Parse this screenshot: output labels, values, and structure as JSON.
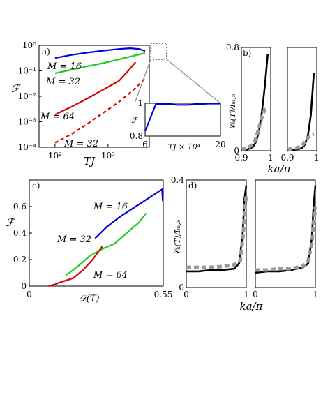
{
  "chart_data": [
    {
      "panel": "a",
      "panel_label": "a)",
      "type": "line",
      "xscale": "log",
      "yscale": "log",
      "xlim": [
        50,
        6000
      ],
      "ylim": [
        0.0001,
        1
      ],
      "xlabel": "TJ",
      "ylabel": "ℱ",
      "xticks": [
        {
          "v": 100,
          "label": "10²"
        },
        {
          "v": 1000,
          "label": "10³"
        }
      ],
      "yticks": [
        {
          "v": 1,
          "label": "10⁰"
        },
        {
          "v": 0.1,
          "label": "10⁻¹"
        },
        {
          "v": 0.01,
          "label": "10⁻²"
        },
        {
          "v": 0.001,
          "label": "10⁻³"
        },
        {
          "v": 0.0001,
          "label": "10⁻⁴"
        }
      ],
      "series": [
        {
          "label": "M = 16",
          "color": "#0000dd",
          "dash": false,
          "x": [
            100,
            200,
            400,
            800,
            1600,
            2600,
            3900,
            5000
          ],
          "y": [
            0.32,
            0.42,
            0.52,
            0.62,
            0.72,
            0.77,
            0.72,
            0.6
          ]
        },
        {
          "label": "M = 32",
          "color": "#22cc22",
          "dash": false,
          "x": [
            100,
            200,
            400,
            800,
            1600,
            3200,
            5000
          ],
          "y": [
            0.08,
            0.11,
            0.15,
            0.2,
            0.28,
            0.4,
            0.5
          ]
        },
        {
          "label": "M = 64",
          "color": "#dd0000",
          "dash": false,
          "x": [
            100,
            200,
            400,
            800,
            1600,
            2400,
            3300
          ],
          "y": [
            0.0019,
            0.0038,
            0.008,
            0.018,
            0.04,
            0.1,
            0.22
          ]
        },
        {
          "label": "M = 32",
          "color": "#dd0000",
          "dash": true,
          "x": [
            100,
            200,
            400,
            800,
            1600,
            3200,
            5000
          ],
          "y": [
            0.00015,
            0.00032,
            0.0008,
            0.0022,
            0.006,
            0.02,
            0.05
          ]
        }
      ],
      "inset": {
        "type": "line",
        "xlim": [
          6,
          20
        ],
        "ylim": [
          0.8,
          1
        ],
        "xlabel": "TJ × 10⁴",
        "ylabel": "ℱ",
        "xticks": [
          {
            "v": 6,
            "label": "6"
          },
          {
            "v": 20,
            "label": "20"
          }
        ],
        "yticks": [
          {
            "v": 0.8,
            "label": "0.8"
          },
          {
            "v": 1,
            "label": "1"
          }
        ],
        "series": [
          {
            "color": "#0000dd",
            "x": [
              6,
              8,
              10,
              12,
              14,
              16,
              18,
              20
            ],
            "y": [
              0.83,
              0.995,
              0.995,
              0.99,
              0.99,
              0.995,
              0.998,
              0.998
            ]
          }
        ]
      }
    },
    {
      "panel": "b",
      "panel_label": "b)",
      "type": "line",
      "xlim": [
        0.9,
        1
      ],
      "ylim": [
        0,
        0.8
      ],
      "xlabel": "ka/π",
      "ylabel": "𝒞ₖ(T)/Iₘ,ₙ",
      "yticks": [
        {
          "v": 0,
          "label": "0"
        },
        {
          "v": 0.8,
          "label": "0.8"
        }
      ],
      "subpanels": [
        {
          "xticks": [
            {
              "v": 0.9,
              "label": "0.9"
            },
            {
              "v": 1,
              "label": "1"
            }
          ],
          "series": [
            {
              "style": "solid-black",
              "x": [
                0.9,
                0.92,
                0.94,
                0.95,
                0.96,
                0.97,
                0.98,
                0.99
              ],
              "y": [
                0.0,
                0.01,
                0.03,
                0.07,
                0.15,
                0.3,
                0.5,
                0.75
              ]
            },
            {
              "style": "dashed-gray",
              "x": [
                0.9,
                0.92,
                0.94,
                0.95,
                0.96,
                0.97,
                0.98,
                0.99
              ],
              "y": [
                0.01,
                0.02,
                0.05,
                0.1,
                0.18,
                0.26,
                0.32,
                0.34
              ]
            }
          ]
        },
        {
          "xticks": [
            {
              "v": 0.9,
              "label": "0.9"
            },
            {
              "v": 1,
              "label": "1"
            }
          ],
          "series": [
            {
              "style": "solid-black",
              "x": [
                0.9,
                0.93,
                0.95,
                0.96,
                0.97,
                0.98,
                0.99
              ],
              "y": [
                0.0,
                0.01,
                0.02,
                0.05,
                0.12,
                0.28,
                0.6
              ]
            },
            {
              "style": "dashed-gray",
              "x": [
                0.9,
                0.93,
                0.95,
                0.96,
                0.97,
                0.98,
                0.99
              ],
              "y": [
                0.01,
                0.02,
                0.04,
                0.07,
                0.1,
                0.12,
                0.13
              ]
            }
          ]
        }
      ]
    },
    {
      "panel": "c",
      "panel_label": "c)",
      "type": "line",
      "xlim": [
        0,
        0.55
      ],
      "ylim": [
        0,
        0.8
      ],
      "xlabel": "𝒟(T)",
      "ylabel": "ℱ",
      "xticks": [
        {
          "v": 0,
          "label": "0"
        },
        {
          "v": 0.55,
          "label": "0.55"
        }
      ],
      "yticks": [
        {
          "v": 0,
          "label": "0"
        },
        {
          "v": 0.2,
          "label": "0.2"
        },
        {
          "v": 0.4,
          "label": "0.4"
        },
        {
          "v": 0.6,
          "label": "0.6"
        }
      ],
      "series": [
        {
          "label": "M = 16",
          "color": "#0000dd",
          "x": [
            0.27,
            0.32,
            0.37,
            0.42,
            0.47,
            0.52,
            0.545,
            0.548
          ],
          "y": [
            0.36,
            0.45,
            0.52,
            0.58,
            0.64,
            0.7,
            0.73,
            0.64
          ]
        },
        {
          "label": "M = 32",
          "color": "#22cc22",
          "x": [
            0.15,
            0.2,
            0.25,
            0.3,
            0.35,
            0.4,
            0.45,
            0.48
          ],
          "y": [
            0.08,
            0.15,
            0.23,
            0.28,
            0.32,
            0.4,
            0.48,
            0.55
          ]
        },
        {
          "label": "M = 64",
          "color": "#dd0000",
          "x": [
            0.08,
            0.1,
            0.13,
            0.18,
            0.22,
            0.26,
            0.3
          ],
          "y": [
            0.0,
            0.01,
            0.03,
            0.06,
            0.12,
            0.2,
            0.3
          ]
        }
      ]
    },
    {
      "panel": "d",
      "panel_label": "d)",
      "type": "line",
      "xlim": [
        0,
        1
      ],
      "ylim": [
        0,
        0.4
      ],
      "xlabel": "ka/π",
      "ylabel": "𝒞ₖ(T)/Iₘ,ₙ",
      "yticks": [
        {
          "v": 0,
          "label": "0"
        },
        {
          "v": 0.4,
          "label": "0.4"
        }
      ],
      "subpanels": [
        {
          "xticks": [
            {
              "v": 0,
              "label": "0"
            },
            {
              "v": 1,
              "label": "1"
            }
          ],
          "series": [
            {
              "style": "solid-black",
              "x": [
                0,
                0.2,
                0.4,
                0.6,
                0.8,
                0.88,
                0.94,
                0.97,
                1.0
              ],
              "y": [
                0.06,
                0.06,
                0.065,
                0.065,
                0.07,
                0.09,
                0.2,
                0.33,
                0.38
              ]
            },
            {
              "style": "dashed-gray",
              "x": [
                0,
                0.2,
                0.4,
                0.6,
                0.8,
                0.9,
                0.95,
                0.98,
                1.0
              ],
              "y": [
                0.075,
                0.075,
                0.075,
                0.078,
                0.085,
                0.1,
                0.2,
                0.3,
                0.34
              ]
            }
          ]
        },
        {
          "xticks": [
            {
              "v": 0,
              "label": "0"
            },
            {
              "v": 1,
              "label": "1"
            }
          ],
          "series": [
            {
              "style": "solid-black",
              "x": [
                0,
                0.2,
                0.4,
                0.6,
                0.8,
                0.88,
                0.94,
                0.97,
                1.0
              ],
              "y": [
                0.055,
                0.06,
                0.06,
                0.065,
                0.075,
                0.09,
                0.18,
                0.3,
                0.38
              ]
            },
            {
              "style": "dashed-gray",
              "x": [
                0,
                0.2,
                0.4,
                0.6,
                0.8,
                0.88,
                0.94,
                0.97,
                1.0
              ],
              "y": [
                0.065,
                0.065,
                0.07,
                0.07,
                0.08,
                0.1,
                0.16,
                0.24,
                0.3
              ]
            }
          ]
        }
      ]
    }
  ]
}
